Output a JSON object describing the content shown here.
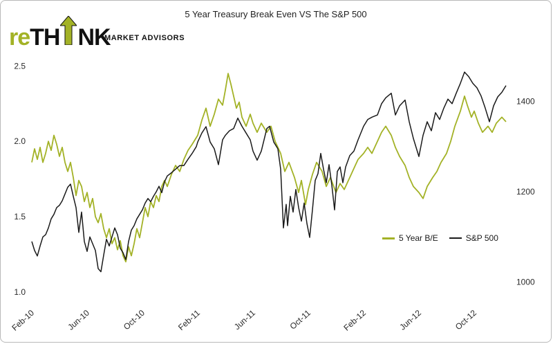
{
  "header": {
    "brand_prefix": "re",
    "brand_mid": "TH",
    "brand_suffix": "NK",
    "tagline": "MARKET ADVISORS",
    "brand_green": "#a3b226"
  },
  "chart_data": {
    "type": "line",
    "title": "5 Year Treasury Break Even VS The S&P 500",
    "x_unit": "months since Feb-2010",
    "xlim": [
      0,
      34.6
    ],
    "ylim_left": [
      0.93,
      2.52
    ],
    "ylim_right": [
      955,
      1485
    ],
    "grid": false,
    "legend_position": "inside-right-middle",
    "x_ticks": [
      {
        "m": 0,
        "label": "Feb-10"
      },
      {
        "m": 4,
        "label": "Jun-10"
      },
      {
        "m": 8,
        "label": "Oct-10"
      },
      {
        "m": 12,
        "label": "Feb-11"
      },
      {
        "m": 16,
        "label": "Jun-11"
      },
      {
        "m": 20,
        "label": "Oct-11"
      },
      {
        "m": 24,
        "label": "Feb-12"
      },
      {
        "m": 28,
        "label": "Jun-12"
      },
      {
        "m": 32,
        "label": "Oct-12"
      }
    ],
    "y_ticks_left": [
      {
        "v": 1.0,
        "label": "1.0"
      },
      {
        "v": 1.5,
        "label": "1.5"
      },
      {
        "v": 2.0,
        "label": "2.0"
      },
      {
        "v": 2.5,
        "label": "2.5"
      }
    ],
    "y_ticks_right": [
      {
        "v": 1000,
        "label": "1000"
      },
      {
        "v": 1200,
        "label": "1200"
      },
      {
        "v": 1400,
        "label": "1400"
      }
    ],
    "series": [
      {
        "name": "5 Year B/E",
        "axis": "left",
        "color": "#a3b226",
        "width": 1.8,
        "points": [
          [
            0.0,
            1.86
          ],
          [
            0.2,
            1.95
          ],
          [
            0.4,
            1.88
          ],
          [
            0.6,
            1.96
          ],
          [
            0.8,
            1.86
          ],
          [
            1.0,
            1.92
          ],
          [
            1.2,
            2.0
          ],
          [
            1.4,
            1.94
          ],
          [
            1.6,
            2.04
          ],
          [
            1.8,
            1.98
          ],
          [
            2.0,
            1.9
          ],
          [
            2.2,
            1.96
          ],
          [
            2.4,
            1.86
          ],
          [
            2.6,
            1.8
          ],
          [
            2.8,
            1.86
          ],
          [
            3.0,
            1.76
          ],
          [
            3.2,
            1.64
          ],
          [
            3.4,
            1.74
          ],
          [
            3.6,
            1.7
          ],
          [
            3.8,
            1.6
          ],
          [
            4.0,
            1.66
          ],
          [
            4.2,
            1.56
          ],
          [
            4.4,
            1.62
          ],
          [
            4.6,
            1.5
          ],
          [
            4.8,
            1.46
          ],
          [
            5.0,
            1.52
          ],
          [
            5.2,
            1.42
          ],
          [
            5.4,
            1.36
          ],
          [
            5.6,
            1.42
          ],
          [
            5.8,
            1.32
          ],
          [
            6.0,
            1.36
          ],
          [
            6.2,
            1.28
          ],
          [
            6.4,
            1.34
          ],
          [
            6.6,
            1.24
          ],
          [
            6.8,
            1.2
          ],
          [
            7.0,
            1.3
          ],
          [
            7.2,
            1.24
          ],
          [
            7.4,
            1.32
          ],
          [
            7.6,
            1.42
          ],
          [
            7.8,
            1.36
          ],
          [
            8.0,
            1.46
          ],
          [
            8.2,
            1.56
          ],
          [
            8.4,
            1.5
          ],
          [
            8.6,
            1.6
          ],
          [
            8.8,
            1.56
          ],
          [
            9.0,
            1.64
          ],
          [
            9.2,
            1.6
          ],
          [
            9.4,
            1.7
          ],
          [
            9.6,
            1.74
          ],
          [
            9.8,
            1.7
          ],
          [
            10.1,
            1.78
          ],
          [
            10.4,
            1.84
          ],
          [
            10.7,
            1.8
          ],
          [
            11.0,
            1.88
          ],
          [
            11.3,
            1.94
          ],
          [
            11.6,
            1.98
          ],
          [
            12.0,
            2.04
          ],
          [
            12.3,
            2.14
          ],
          [
            12.6,
            2.22
          ],
          [
            12.9,
            2.1
          ],
          [
            13.2,
            2.18
          ],
          [
            13.5,
            2.28
          ],
          [
            13.8,
            2.24
          ],
          [
            14.0,
            2.34
          ],
          [
            14.2,
            2.45
          ],
          [
            14.4,
            2.38
          ],
          [
            14.6,
            2.3
          ],
          [
            14.8,
            2.22
          ],
          [
            15.0,
            2.26
          ],
          [
            15.2,
            2.16
          ],
          [
            15.5,
            2.1
          ],
          [
            15.8,
            2.18
          ],
          [
            16.0,
            2.12
          ],
          [
            16.3,
            2.06
          ],
          [
            16.6,
            2.12
          ],
          [
            17.0,
            2.06
          ],
          [
            17.3,
            2.1
          ],
          [
            17.6,
            2.0
          ],
          [
            18.0,
            1.92
          ],
          [
            18.3,
            1.8
          ],
          [
            18.6,
            1.86
          ],
          [
            19.0,
            1.76
          ],
          [
            19.3,
            1.66
          ],
          [
            19.5,
            1.74
          ],
          [
            19.8,
            1.58
          ],
          [
            20.0,
            1.68
          ],
          [
            20.3,
            1.78
          ],
          [
            20.6,
            1.86
          ],
          [
            21.0,
            1.8
          ],
          [
            21.3,
            1.7
          ],
          [
            21.6,
            1.76
          ],
          [
            22.0,
            1.66
          ],
          [
            22.3,
            1.72
          ],
          [
            22.6,
            1.68
          ],
          [
            23.0,
            1.76
          ],
          [
            23.3,
            1.82
          ],
          [
            23.6,
            1.88
          ],
          [
            24.0,
            1.92
          ],
          [
            24.3,
            1.96
          ],
          [
            24.6,
            1.92
          ],
          [
            25.0,
            2.0
          ],
          [
            25.3,
            2.06
          ],
          [
            25.6,
            2.1
          ],
          [
            26.0,
            2.04
          ],
          [
            26.3,
            1.96
          ],
          [
            26.6,
            1.9
          ],
          [
            27.0,
            1.84
          ],
          [
            27.3,
            1.76
          ],
          [
            27.6,
            1.7
          ],
          [
            28.0,
            1.66
          ],
          [
            28.3,
            1.62
          ],
          [
            28.6,
            1.7
          ],
          [
            29.0,
            1.76
          ],
          [
            29.3,
            1.8
          ],
          [
            29.6,
            1.86
          ],
          [
            30.0,
            1.92
          ],
          [
            30.3,
            2.0
          ],
          [
            30.6,
            2.1
          ],
          [
            31.0,
            2.2
          ],
          [
            31.3,
            2.3
          ],
          [
            31.5,
            2.24
          ],
          [
            31.8,
            2.16
          ],
          [
            32.0,
            2.2
          ],
          [
            32.3,
            2.12
          ],
          [
            32.6,
            2.06
          ],
          [
            33.0,
            2.1
          ],
          [
            33.3,
            2.06
          ],
          [
            33.6,
            2.12
          ],
          [
            34.0,
            2.16
          ],
          [
            34.3,
            2.13
          ]
        ]
      },
      {
        "name": "S&P 500",
        "axis": "right",
        "color": "#1a1a1a",
        "width": 1.5,
        "points": [
          [
            0.0,
            1090
          ],
          [
            0.2,
            1070
          ],
          [
            0.4,
            1058
          ],
          [
            0.6,
            1080
          ],
          [
            0.8,
            1100
          ],
          [
            1.0,
            1105
          ],
          [
            1.2,
            1120
          ],
          [
            1.4,
            1140
          ],
          [
            1.6,
            1150
          ],
          [
            1.8,
            1165
          ],
          [
            2.0,
            1170
          ],
          [
            2.2,
            1180
          ],
          [
            2.4,
            1195
          ],
          [
            2.6,
            1210
          ],
          [
            2.8,
            1217
          ],
          [
            3.0,
            1190
          ],
          [
            3.2,
            1165
          ],
          [
            3.4,
            1110
          ],
          [
            3.6,
            1155
          ],
          [
            3.8,
            1090
          ],
          [
            4.0,
            1068
          ],
          [
            4.2,
            1100
          ],
          [
            4.4,
            1085
          ],
          [
            4.6,
            1070
          ],
          [
            4.8,
            1030
          ],
          [
            5.0,
            1023
          ],
          [
            5.2,
            1060
          ],
          [
            5.4,
            1095
          ],
          [
            5.6,
            1080
          ],
          [
            5.8,
            1100
          ],
          [
            6.0,
            1120
          ],
          [
            6.2,
            1105
          ],
          [
            6.4,
            1075
          ],
          [
            6.6,
            1065
          ],
          [
            6.8,
            1050
          ],
          [
            7.0,
            1090
          ],
          [
            7.2,
            1115
          ],
          [
            7.4,
            1125
          ],
          [
            7.6,
            1140
          ],
          [
            7.8,
            1150
          ],
          [
            8.0,
            1160
          ],
          [
            8.2,
            1175
          ],
          [
            8.4,
            1185
          ],
          [
            8.6,
            1178
          ],
          [
            8.8,
            1190
          ],
          [
            9.0,
            1200
          ],
          [
            9.2,
            1212
          ],
          [
            9.4,
            1198
          ],
          [
            9.6,
            1222
          ],
          [
            9.8,
            1235
          ],
          [
            10.1,
            1242
          ],
          [
            10.4,
            1250
          ],
          [
            10.7,
            1258
          ],
          [
            11.0,
            1258
          ],
          [
            11.3,
            1272
          ],
          [
            11.6,
            1285
          ],
          [
            11.9,
            1300
          ],
          [
            12.0,
            1310
          ],
          [
            12.3,
            1330
          ],
          [
            12.6,
            1344
          ],
          [
            12.9,
            1310
          ],
          [
            13.2,
            1295
          ],
          [
            13.5,
            1260
          ],
          [
            13.8,
            1315
          ],
          [
            14.0,
            1325
          ],
          [
            14.3,
            1335
          ],
          [
            14.6,
            1340
          ],
          [
            14.9,
            1363
          ],
          [
            15.2,
            1345
          ],
          [
            15.5,
            1330
          ],
          [
            15.8,
            1315
          ],
          [
            16.0,
            1290
          ],
          [
            16.3,
            1270
          ],
          [
            16.6,
            1290
          ],
          [
            17.0,
            1340
          ],
          [
            17.2,
            1345
          ],
          [
            17.5,
            1310
          ],
          [
            17.8,
            1295
          ],
          [
            18.0,
            1250
          ],
          [
            18.2,
            1120
          ],
          [
            18.4,
            1172
          ],
          [
            18.5,
            1125
          ],
          [
            18.7,
            1190
          ],
          [
            18.9,
            1155
          ],
          [
            19.1,
            1205
          ],
          [
            19.3,
            1165
          ],
          [
            19.5,
            1135
          ],
          [
            19.7,
            1175
          ],
          [
            19.9,
            1130
          ],
          [
            20.1,
            1099
          ],
          [
            20.3,
            1160
          ],
          [
            20.5,
            1225
          ],
          [
            20.7,
            1240
          ],
          [
            20.9,
            1285
          ],
          [
            21.1,
            1250
          ],
          [
            21.3,
            1220
          ],
          [
            21.5,
            1260
          ],
          [
            21.7,
            1215
          ],
          [
            21.9,
            1160
          ],
          [
            22.1,
            1245
          ],
          [
            22.3,
            1255
          ],
          [
            22.5,
            1220
          ],
          [
            22.7,
            1255
          ],
          [
            23.0,
            1280
          ],
          [
            23.3,
            1290
          ],
          [
            23.6,
            1315
          ],
          [
            24.0,
            1345
          ],
          [
            24.3,
            1360
          ],
          [
            24.6,
            1365
          ],
          [
            25.0,
            1370
          ],
          [
            25.3,
            1395
          ],
          [
            25.6,
            1408
          ],
          [
            26.0,
            1418
          ],
          [
            26.3,
            1370
          ],
          [
            26.6,
            1390
          ],
          [
            27.0,
            1403
          ],
          [
            27.3,
            1355
          ],
          [
            27.6,
            1318
          ],
          [
            28.0,
            1278
          ],
          [
            28.3,
            1325
          ],
          [
            28.6,
            1355
          ],
          [
            28.9,
            1335
          ],
          [
            29.2,
            1375
          ],
          [
            29.5,
            1360
          ],
          [
            29.8,
            1385
          ],
          [
            30.1,
            1405
          ],
          [
            30.4,
            1395
          ],
          [
            30.7,
            1418
          ],
          [
            31.0,
            1440
          ],
          [
            31.3,
            1465
          ],
          [
            31.6,
            1455
          ],
          [
            31.9,
            1440
          ],
          [
            32.2,
            1430
          ],
          [
            32.5,
            1412
          ],
          [
            32.8,
            1385
          ],
          [
            33.1,
            1355
          ],
          [
            33.4,
            1390
          ],
          [
            33.7,
            1410
          ],
          [
            34.0,
            1420
          ],
          [
            34.3,
            1435
          ]
        ]
      }
    ]
  }
}
